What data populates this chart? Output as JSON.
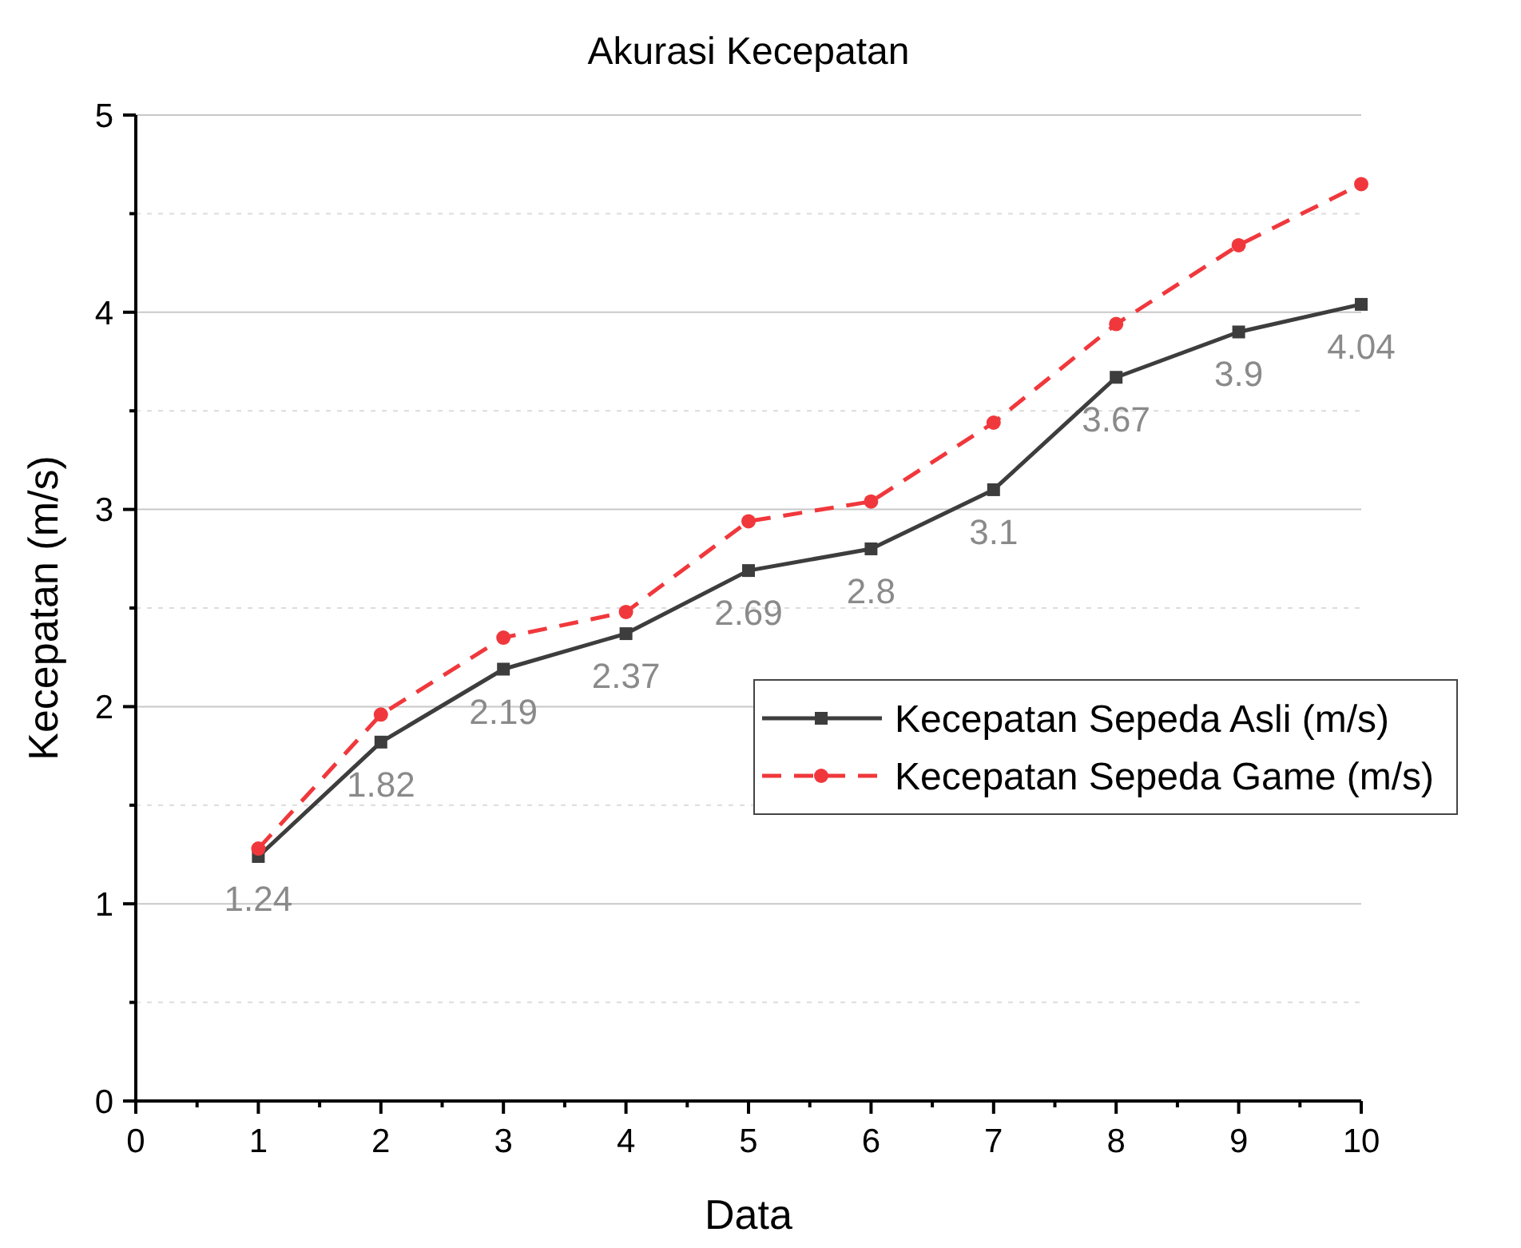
{
  "chart_data": {
    "type": "line",
    "title": "Akurasi Kecepatan",
    "xlabel": "Data",
    "ylabel": "Kecepatan (m/s)",
    "x": [
      1,
      2,
      3,
      4,
      5,
      6,
      7,
      8,
      9,
      10
    ],
    "series": [
      {
        "name": "Kecepatan Sepeda Asli (m/s)",
        "color": "#3d3d3d",
        "marker": "square",
        "line_style": "solid",
        "values": [
          1.24,
          1.82,
          2.19,
          2.37,
          2.69,
          2.8,
          3.1,
          3.67,
          3.9,
          4.04
        ],
        "value_labels": [
          "1.24",
          "1.82",
          "2.19",
          "2.37",
          "2.69",
          "2.8",
          "3.1",
          "3.67",
          "3.9",
          "4.04"
        ]
      },
      {
        "name": "Kecepatan Sepeda Game (m/s)",
        "color": "#f0383c",
        "marker": "circle",
        "line_style": "dashed",
        "values": [
          1.28,
          1.96,
          2.35,
          2.48,
          2.94,
          3.04,
          3.44,
          3.94,
          4.34,
          4.65
        ]
      }
    ],
    "xlim": [
      0,
      10
    ],
    "xticks": [
      0,
      1,
      2,
      3,
      4,
      5,
      6,
      7,
      8,
      9,
      10
    ],
    "ylim": [
      0,
      5
    ],
    "yticks": [
      0,
      1,
      2,
      3,
      4,
      5
    ],
    "grid": "y",
    "legend": "right"
  }
}
